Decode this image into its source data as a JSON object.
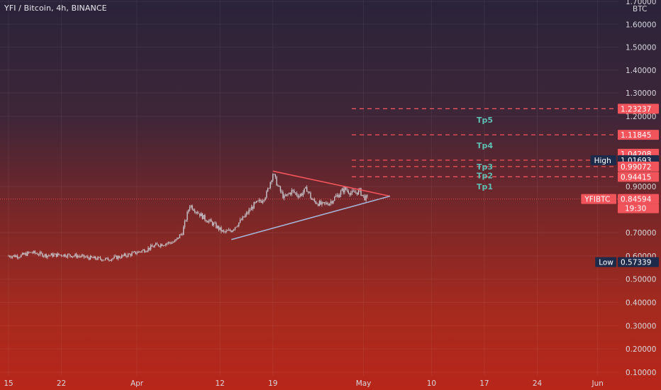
{
  "header": {
    "symbol_title": "YFI / Bitcoin, 4h, BINANCE"
  },
  "colors": {
    "level_line": "#f2545b",
    "level_tag": "#f2545b",
    "dark_tag": "#1e2a4a",
    "tp_text": "#5fbfb4",
    "triangle_top": "#f2545b",
    "triangle_bottom": "#a5b5d9",
    "candle": "#c9c9cf"
  },
  "chart_data": {
    "type": "candlestick",
    "title": "YFI / Bitcoin, 4h, BINANCE",
    "y_axis": {
      "unit": "BTC",
      "range": [
        0.09,
        1.7
      ],
      "tick_values": [
        0.1,
        0.2,
        0.3,
        0.4,
        0.5,
        0.6,
        0.7,
        0.9,
        1.2,
        1.3,
        1.4,
        1.5,
        1.6,
        1.7
      ],
      "tick_labels": [
        "0.10000",
        "0.20000",
        "0.30000",
        "0.40000",
        "0.50000",
        "0.60000",
        "0.70000",
        "0.90000",
        "1.20000",
        "1.30000",
        "1.40000",
        "1.50000",
        "1.60000",
        "1.70000"
      ]
    },
    "x_axis": {
      "tick_labels": [
        "15",
        "22",
        "Apr",
        "12",
        "19",
        "May",
        "10",
        "17",
        "24",
        "Jun"
      ],
      "tick_days": [
        0,
        7,
        17,
        28,
        35,
        47,
        56,
        63,
        70,
        78
      ]
    },
    "price_series_day_close": [
      [
        0,
        0.6
      ],
      [
        1.5,
        0.6
      ],
      [
        3,
        0.615
      ],
      [
        5,
        0.602
      ],
      [
        7,
        0.605
      ],
      [
        9,
        0.6
      ],
      [
        11,
        0.59
      ],
      [
        13,
        0.585
      ],
      [
        15,
        0.598
      ],
      [
        16.5,
        0.61
      ],
      [
        18,
        0.625
      ],
      [
        19.5,
        0.645
      ],
      [
        21,
        0.655
      ],
      [
        22,
        0.66
      ],
      [
        23,
        0.7
      ],
      [
        24,
        0.82
      ],
      [
        25,
        0.79
      ],
      [
        26,
        0.76
      ],
      [
        27,
        0.74
      ],
      [
        28.5,
        0.7
      ],
      [
        29.5,
        0.71
      ],
      [
        31,
        0.76
      ],
      [
        32.5,
        0.82
      ],
      [
        33.5,
        0.84
      ],
      [
        34.2,
        0.87
      ],
      [
        35,
        0.96
      ],
      [
        35.8,
        0.89
      ],
      [
        36.5,
        0.85
      ],
      [
        37.5,
        0.88
      ],
      [
        38.5,
        0.86
      ],
      [
        39.5,
        0.89
      ],
      [
        40.2,
        0.84
      ],
      [
        41.5,
        0.82
      ],
      [
        42.5,
        0.83
      ],
      [
        43.5,
        0.86
      ],
      [
        44.5,
        0.89
      ],
      [
        45.5,
        0.87
      ],
      [
        46.5,
        0.88
      ],
      [
        47,
        0.855
      ],
      [
        47.5,
        0.846
      ]
    ],
    "triangle": {
      "upper_line": [
        [
          35,
          0.97
        ],
        [
          50.5,
          0.858
        ]
      ],
      "lower_line": [
        [
          29.5,
          0.67
        ],
        [
          50.5,
          0.858
        ]
      ]
    },
    "target_levels": [
      {
        "label": "Tp1",
        "value": 0.94415
      },
      {
        "label": "Tp2",
        "value": 0.99072
      },
      {
        "label": "Tp3",
        "value": 1.01693
      },
      {
        "label": "Tp4",
        "value": 1.11845
      },
      {
        "label": "Tp5",
        "value": 1.23237
      }
    ],
    "price_tags": [
      {
        "text": "1.23237",
        "value": 1.23237,
        "style": "red"
      },
      {
        "text": "1.11845",
        "value": 1.11845,
        "style": "red"
      },
      {
        "text": "1.04208",
        "value": 1.04208,
        "style": "red"
      },
      {
        "text": "1.01693",
        "value": 1.01693,
        "style": "dark",
        "prefix": "High"
      },
      {
        "text": "0.99072",
        "value": 0.99072,
        "style": "red"
      },
      {
        "text": "0.94415",
        "value": 0.94415,
        "style": "red"
      },
      {
        "text": "0.84594",
        "value": 0.84594,
        "style": "red",
        "prefix": "YFIBTC",
        "sub": "19:30"
      },
      {
        "text": "0.57339",
        "value": 0.57339,
        "style": "dark",
        "prefix": "Low"
      }
    ],
    "current_price": 0.84594,
    "countdown": "19:30",
    "axis_unit_label": "BTC"
  }
}
